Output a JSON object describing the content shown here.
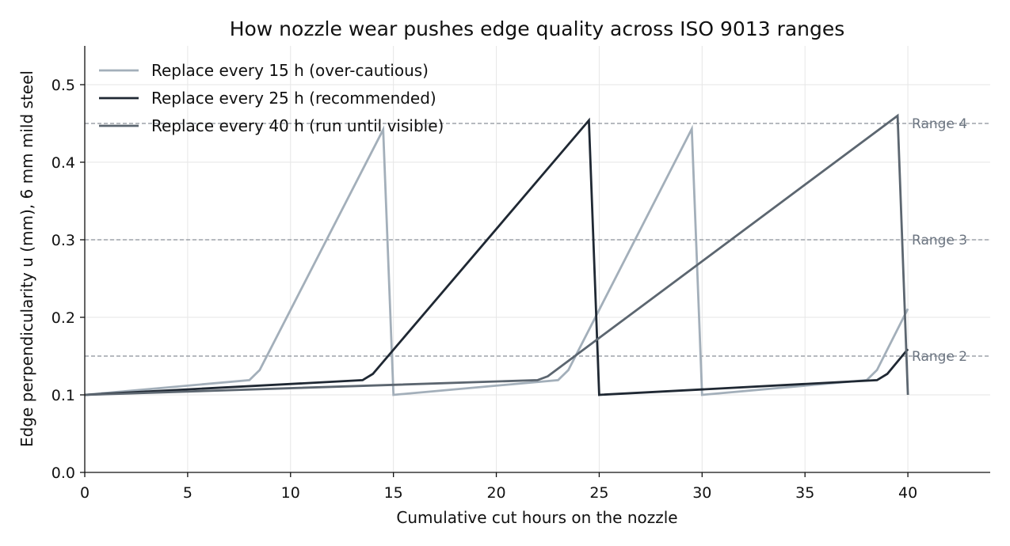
{
  "chart_data": {
    "type": "line",
    "title": "How nozzle wear pushes edge quality across ISO 9013 ranges",
    "xlabel": "Cumulative cut hours on the nozzle",
    "ylabel": "Edge perpendicularity u (mm), 6 mm mild steel",
    "xlim": [
      0,
      44
    ],
    "ylim": [
      0,
      0.55
    ],
    "xticks": [
      0,
      5,
      10,
      15,
      20,
      25,
      30,
      35,
      40
    ],
    "yticks": [
      0.0,
      0.1,
      0.2,
      0.3,
      0.4,
      0.5
    ],
    "grid": true,
    "legend": "top-left",
    "reference_lines": [
      {
        "label": "Range 2",
        "y": 0.15
      },
      {
        "label": "Range 3",
        "y": 0.3
      },
      {
        "label": "Range 4",
        "y": 0.45
      }
    ],
    "series": [
      {
        "name": "Replace every 15 h (over-cautious)",
        "color": "#a3afba",
        "x": [
          0,
          8,
          8.5,
          14.5,
          15,
          23,
          23.5,
          29.5,
          30,
          38,
          38.5,
          40
        ],
        "y": [
          0.1,
          0.119,
          0.132,
          0.442,
          0.1,
          0.119,
          0.132,
          0.443,
          0.1,
          0.119,
          0.132,
          0.211
        ]
      },
      {
        "name": "Replace every 25 h (recommended)",
        "color": "#1f2833",
        "x": [
          0,
          13.5,
          14,
          24.5,
          25,
          38.5,
          39,
          40
        ],
        "y": [
          0.1,
          0.119,
          0.127,
          0.454,
          0.1,
          0.119,
          0.127,
          0.159
        ]
      },
      {
        "name": "Replace every 40 h (run until visible)",
        "color": "#5c6670",
        "x": [
          0,
          22,
          22.5,
          39.5,
          40
        ],
        "y": [
          0.1,
          0.119,
          0.124,
          0.46,
          0.1
        ]
      }
    ]
  }
}
